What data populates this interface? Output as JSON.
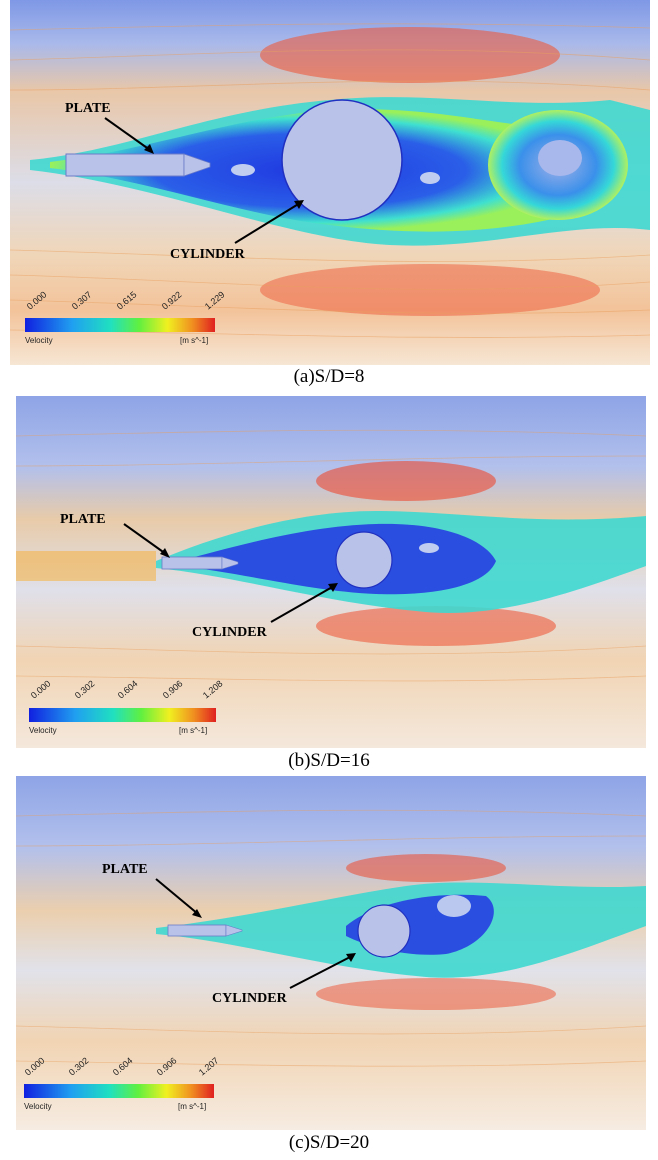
{
  "panels": [
    {
      "caption": "(a)S/D=8",
      "plate_label": "PLATE",
      "cylinder_label": "CYLINDER",
      "legend": {
        "ticks": [
          "0.000",
          "0.307",
          "0.615",
          "0.922",
          "1.229"
        ],
        "title": "Velocity",
        "unit": "[m s^-1]"
      }
    },
    {
      "caption": "(b)S/D=16",
      "plate_label": "PLATE",
      "cylinder_label": "CYLINDER",
      "legend": {
        "ticks": [
          "0.000",
          "0.302",
          "0.604",
          "0.906",
          "1.208"
        ],
        "title": "Velocity",
        "unit": "[m s^-1]"
      }
    },
    {
      "caption": "(c)S/D=20",
      "plate_label": "PLATE",
      "cylinder_label": "CYLINDER",
      "legend": {
        "ticks": [
          "0.000",
          "0.302",
          "0.604",
          "0.906",
          "1.207"
        ],
        "title": "Velocity",
        "unit": "[m s^-1]"
      }
    }
  ],
  "colors": {
    "far_field": "#9fb3e8",
    "low_velocity": "#1a2fd8",
    "mid_velocity": "#2fe0e0",
    "high_velocity": "#e63a2a",
    "body_fill": "#b9c3ea"
  }
}
